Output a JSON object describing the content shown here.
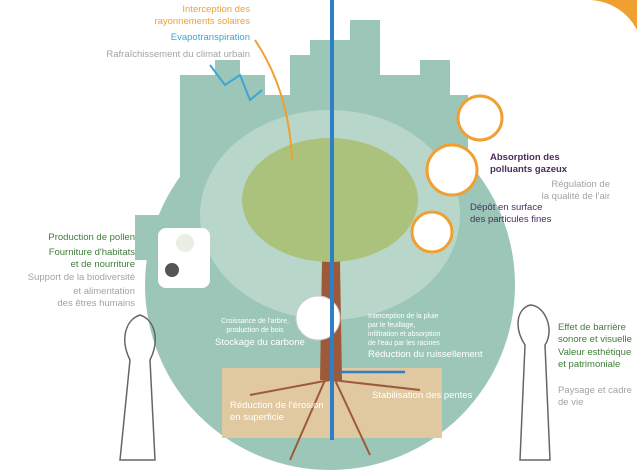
{
  "labels": {
    "solar": [
      "Interception des",
      "rayonnements solaires"
    ],
    "evapotranspiration": [
      "Evapotranspiration"
    ],
    "cooling": [
      "Rafraîchissement du climat urbain"
    ],
    "absorption": [
      "Absorption des",
      "polluants gazeux"
    ],
    "air_quality": [
      "Régulation de",
      "la qualité de l'air"
    ],
    "deposit": [
      "Dépôt en surface",
      "des particules fines"
    ],
    "pollen": [
      "Production de pollen"
    ],
    "habitats": [
      "Fourniture d'habitats",
      "et de nourriture"
    ],
    "biodiversity": [
      "Support de la biodiversité"
    ],
    "food": [
      "et alimentation",
      "des êtres humains"
    ],
    "growth": [
      "Croissance de l'arbre,",
      "production de bois"
    ],
    "carbon": [
      "Stockage du carbone"
    ],
    "rain": [
      "Interception de la pluie",
      "par le feuillage,",
      "infiltration et absorption",
      "de l'eau par les racines"
    ],
    "runoff": [
      "Réduction du ruissellement"
    ],
    "slopes": [
      "Stabilisation des pentes"
    ],
    "erosion": [
      "Réduction de l'érosion",
      "en superficie"
    ],
    "barrier": [
      "Effet de barrière",
      "sonore et visuelle"
    ],
    "aesthetic": [
      "Valeur esthétique",
      "et patrimoniale"
    ],
    "landscape": [
      "Paysage et cadre",
      "de vie"
    ]
  }
}
